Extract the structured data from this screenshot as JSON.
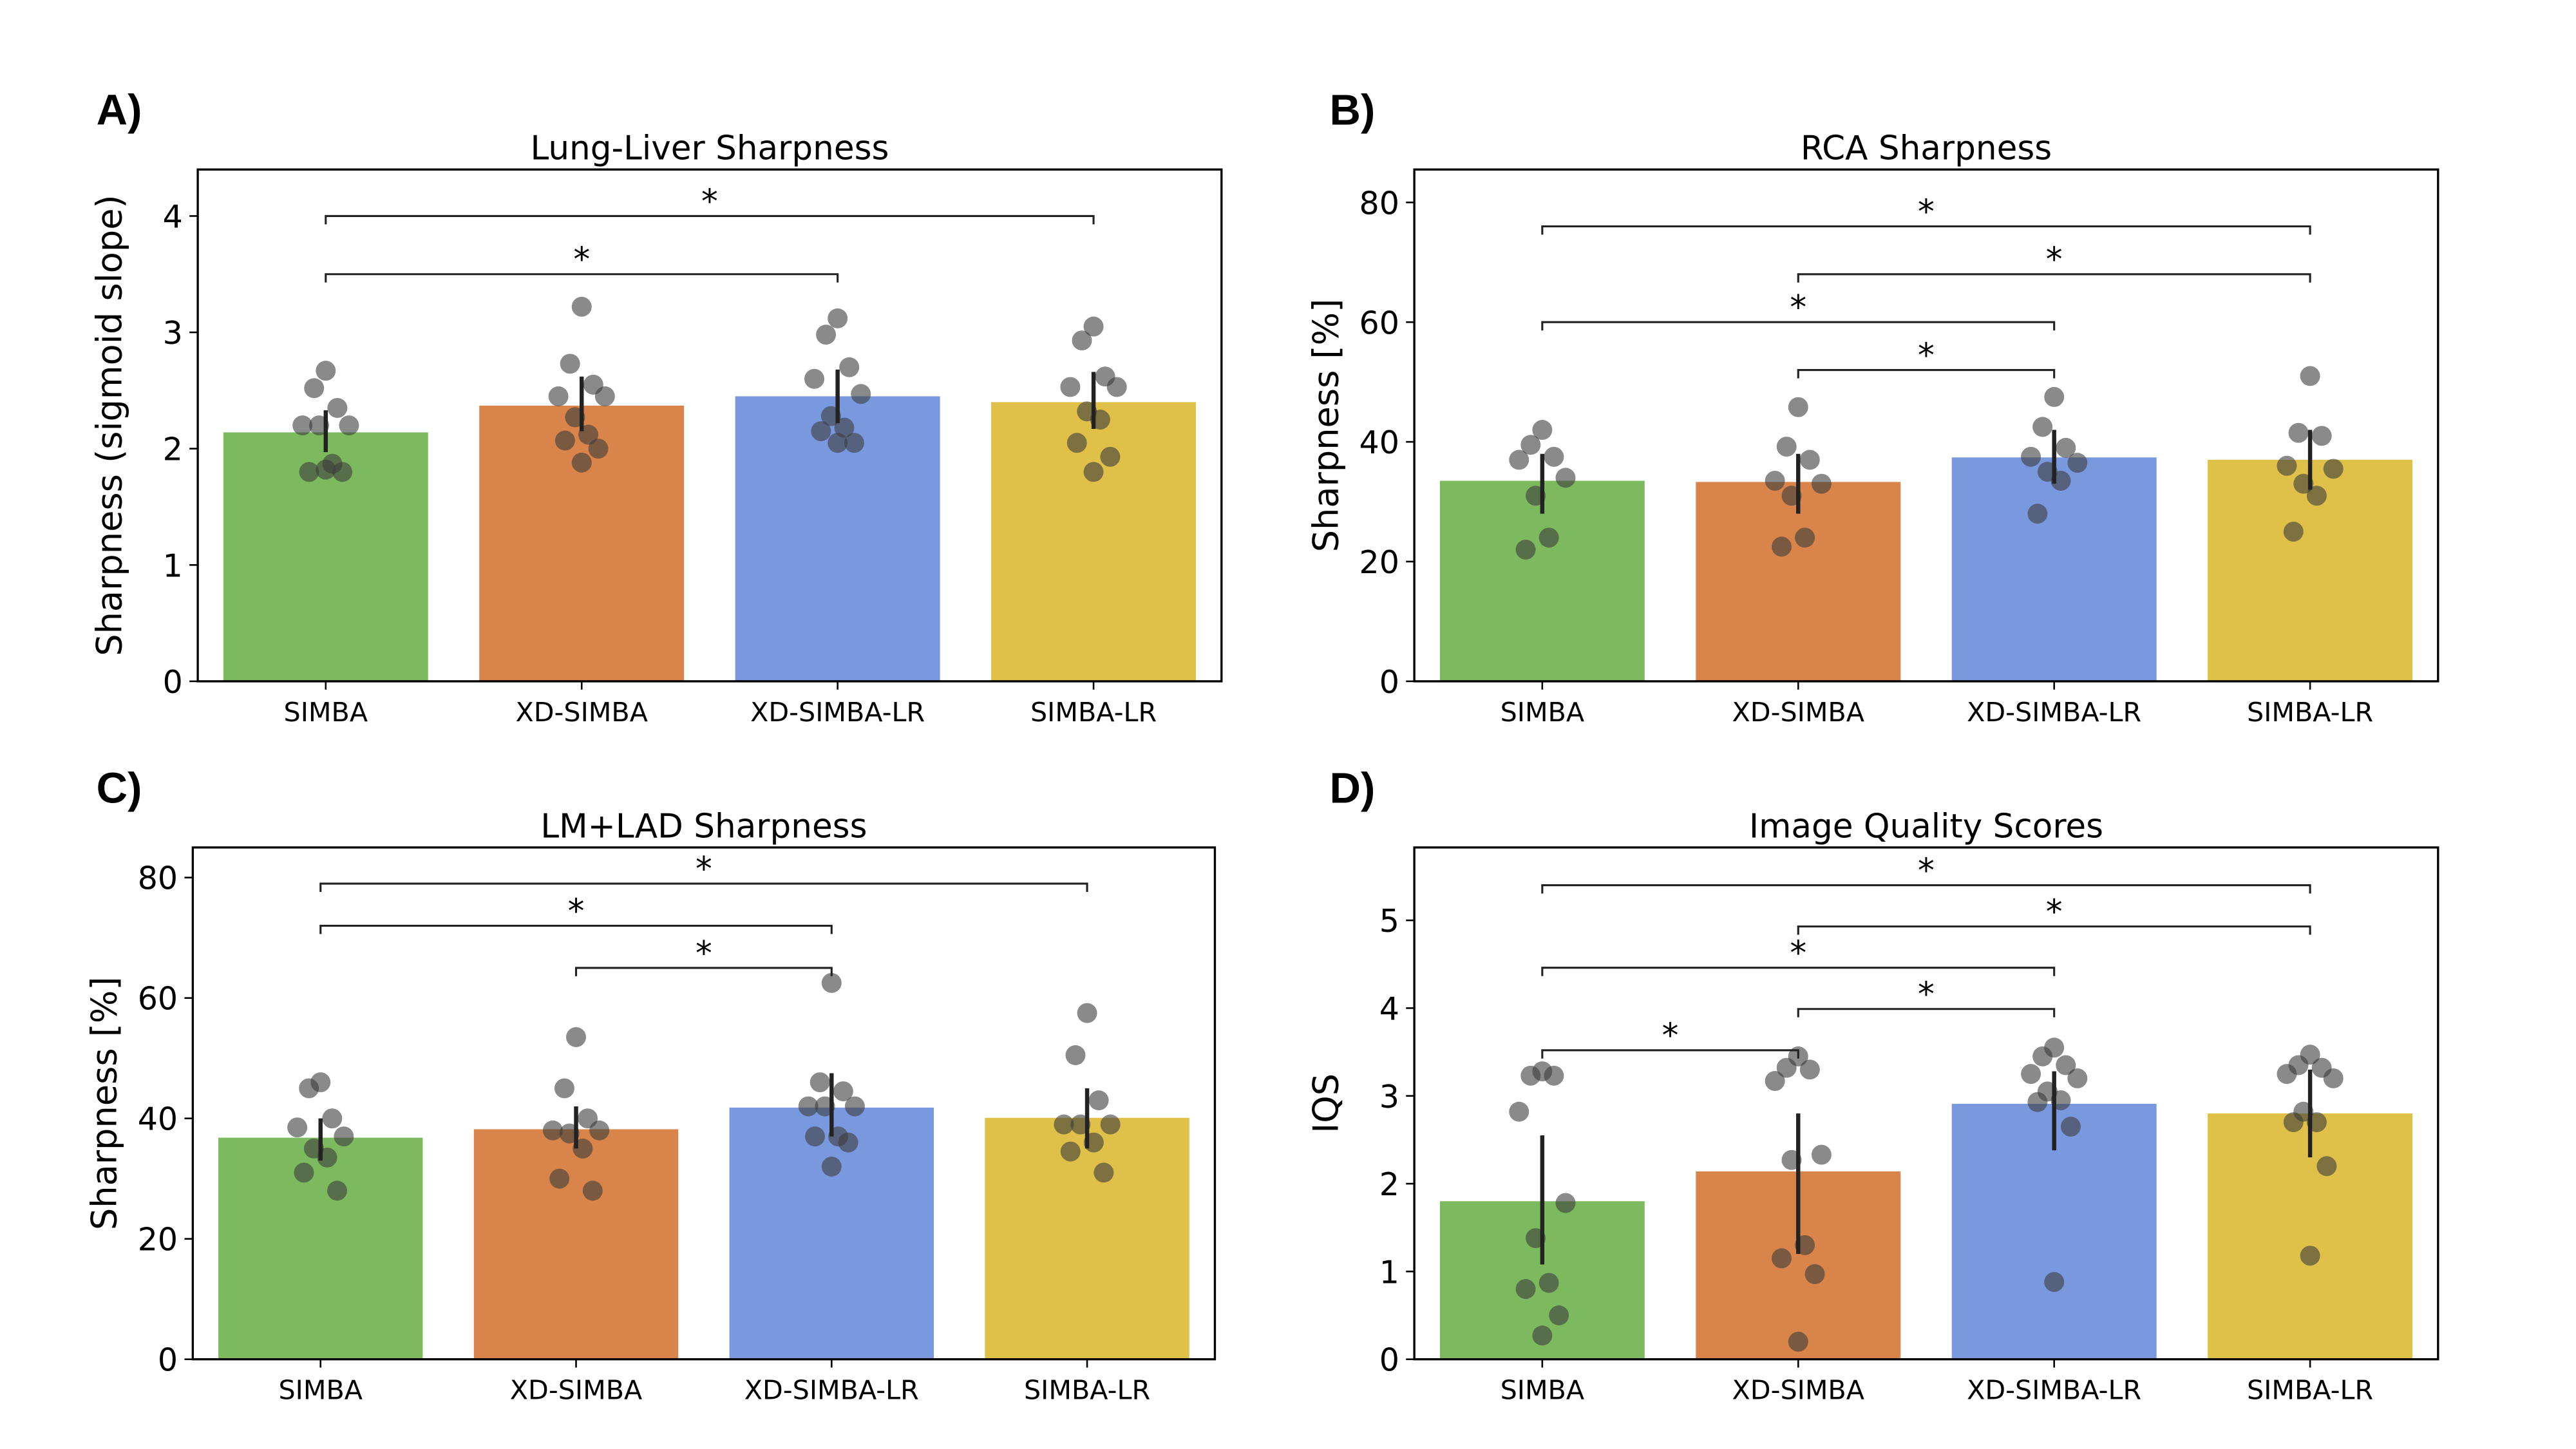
{
  "colors": {
    "SIMBA": "#7dba5f",
    "XD-SIMBA": "#d8844a",
    "XD-SIMBA-LR": "#7a98de",
    "SIMBA-LR": "#dfc14a",
    "points": "#3c3c3c",
    "errorbar": "#222222"
  },
  "chart_data": [
    {
      "panel_label": "A)",
      "type": "bar",
      "title": "Lung-Liver Sharpness",
      "xlabel": "",
      "ylabel": "Sharpness (sigmoid slope)",
      "ylim": [
        0,
        4.4
      ],
      "yticks": [
        0,
        1,
        2,
        3,
        4
      ],
      "categories": [
        "SIMBA",
        "XD-SIMBA",
        "XD-SIMBA-LR",
        "SIMBA-LR"
      ],
      "values": [
        2.14,
        2.37,
        2.45,
        2.4
      ],
      "errors": [
        [
          1.97,
          2.33
        ],
        [
          2.15,
          2.62
        ],
        [
          2.22,
          2.68
        ],
        [
          2.17,
          2.66
        ]
      ],
      "points": [
        [
          2.67,
          2.52,
          2.35,
          2.2,
          2.2,
          2.2,
          1.87,
          1.8,
          1.8,
          1.82
        ],
        [
          3.22,
          2.73,
          2.55,
          2.45,
          2.45,
          2.27,
          2.12,
          2.07,
          2.0,
          1.88
        ],
        [
          3.12,
          2.98,
          2.7,
          2.6,
          2.47,
          2.28,
          2.18,
          2.15,
          2.05,
          2.05
        ],
        [
          3.05,
          2.93,
          2.62,
          2.53,
          2.53,
          2.32,
          2.25,
          2.05,
          1.93,
          1.8
        ]
      ],
      "significance": [
        {
          "from": 0,
          "to": 2,
          "y": 3.5,
          "label": "*"
        },
        {
          "from": 0,
          "to": 3,
          "y": 4.0,
          "label": "*"
        }
      ]
    },
    {
      "panel_label": "B)",
      "type": "bar",
      "title": "RCA Sharpness",
      "xlabel": "",
      "ylabel": "Sharpness [%]",
      "ylim": [
        0,
        85.5
      ],
      "yticks": [
        0,
        20,
        40,
        60,
        80
      ],
      "categories": [
        "SIMBA",
        "XD-SIMBA",
        "XD-SIMBA-LR",
        "SIMBA-LR"
      ],
      "values": [
        33.5,
        33.3,
        37.4,
        37.0
      ],
      "errors": [
        [
          28,
          38
        ],
        [
          28,
          38
        ],
        [
          33,
          42
        ],
        [
          32,
          42
        ]
      ],
      "points": [
        [
          42,
          39.5,
          37.5,
          37,
          34,
          31,
          24,
          22
        ],
        [
          45.8,
          39.2,
          37,
          33.5,
          33,
          31,
          24,
          22.5
        ],
        [
          47.5,
          42.5,
          39,
          37.5,
          36.5,
          35,
          33.5,
          28
        ],
        [
          51,
          41.5,
          41,
          36,
          35.5,
          33,
          31,
          25
        ]
      ],
      "significance": [
        {
          "from": 1,
          "to": 2,
          "y": 52,
          "label": "*"
        },
        {
          "from": 0,
          "to": 2,
          "y": 60,
          "label": "*"
        },
        {
          "from": 1,
          "to": 3,
          "y": 68,
          "label": "*"
        },
        {
          "from": 0,
          "to": 3,
          "y": 76,
          "label": "*"
        }
      ]
    },
    {
      "panel_label": "C)",
      "type": "bar",
      "title": "LM+LAD Sharpness",
      "xlabel": "",
      "ylabel": "Sharpness [%]",
      "ylim": [
        0,
        85
      ],
      "yticks": [
        0,
        20,
        40,
        60,
        80
      ],
      "categories": [
        "SIMBA",
        "XD-SIMBA",
        "XD-SIMBA-LR",
        "SIMBA-LR"
      ],
      "values": [
        36.8,
        38.2,
        41.8,
        40.1
      ],
      "errors": [
        [
          33,
          40
        ],
        [
          35,
          42
        ],
        [
          37,
          47.5
        ],
        [
          35,
          45
        ]
      ],
      "points": [
        [
          46,
          45,
          40,
          38.5,
          37,
          35,
          33.5,
          31,
          28
        ],
        [
          53.5,
          45,
          40,
          38,
          38,
          37.5,
          35,
          30,
          28
        ],
        [
          62.5,
          46,
          44.5,
          42,
          42,
          42,
          37,
          37,
          36,
          32
        ],
        [
          57.5,
          50.5,
          43,
          39,
          39,
          39,
          36,
          34.5,
          31
        ]
      ],
      "significance": [
        {
          "from": 1,
          "to": 2,
          "y": 65,
          "label": "*"
        },
        {
          "from": 0,
          "to": 2,
          "y": 72,
          "label": "*"
        },
        {
          "from": 0,
          "to": 3,
          "y": 79,
          "label": "*"
        }
      ]
    },
    {
      "panel_label": "D)",
      "type": "bar",
      "title": "Image Quality Scores",
      "xlabel": "",
      "ylabel": "IQS",
      "ylim": [
        0,
        5.83
      ],
      "yticks": [
        0,
        1,
        2,
        3,
        4,
        5
      ],
      "categories": [
        "SIMBA",
        "XD-SIMBA",
        "XD-SIMBA-LR",
        "SIMBA-LR"
      ],
      "values": [
        1.8,
        2.14,
        2.91,
        2.8
      ],
      "errors": [
        [
          1.08,
          2.55
        ],
        [
          1.2,
          2.8
        ],
        [
          2.38,
          3.28
        ],
        [
          2.3,
          3.3
        ]
      ],
      "points": [
        [
          3.28,
          3.23,
          3.23,
          2.82,
          1.78,
          1.38,
          0.87,
          0.8,
          0.5,
          0.27
        ],
        [
          3.45,
          3.32,
          3.3,
          3.17,
          2.33,
          2.27,
          1.3,
          1.15,
          0.97,
          0.2
        ],
        [
          3.55,
          3.45,
          3.35,
          3.25,
          3.2,
          3.05,
          2.95,
          2.93,
          2.65,
          0.88
        ],
        [
          3.47,
          3.35,
          3.32,
          3.25,
          3.2,
          2.82,
          2.7,
          2.7,
          2.2,
          1.18
        ]
      ],
      "significance": [
        {
          "from": 0,
          "to": 1,
          "y": 3.52,
          "label": "*"
        },
        {
          "from": 1,
          "to": 2,
          "y": 3.99,
          "label": "*"
        },
        {
          "from": 0,
          "to": 2,
          "y": 4.46,
          "label": "*"
        },
        {
          "from": 1,
          "to": 3,
          "y": 4.93,
          "label": "*"
        },
        {
          "from": 0,
          "to": 3,
          "y": 5.4,
          "label": "*"
        }
      ]
    }
  ]
}
